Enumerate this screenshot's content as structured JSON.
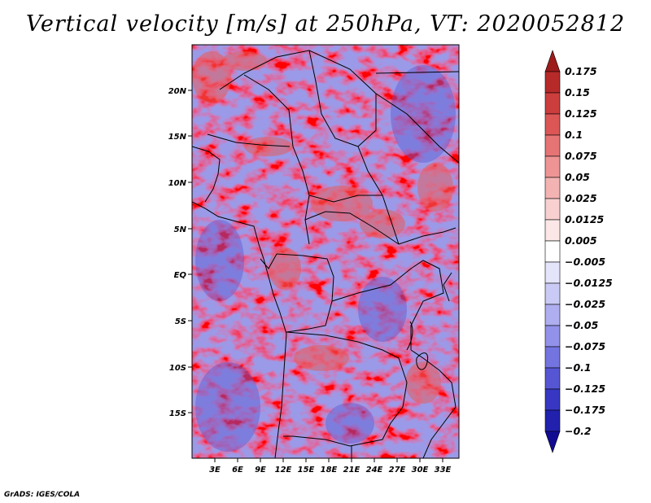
{
  "title": "Vertical velocity [m/s] at 250hPa, VT: 2020052812",
  "credit": "GrADS: IGES/COLA",
  "map": {
    "variable": "Vertical velocity",
    "units": "m/s",
    "level": "250hPa",
    "valid_time": "2020052812",
    "lat_labels": [
      "20N",
      "15N",
      "10N",
      "5N",
      "EQ",
      "5S",
      "10S",
      "15S"
    ],
    "lon_labels": [
      "3E",
      "6E",
      "9E",
      "12E",
      "15E",
      "18E",
      "21E",
      "24E",
      "27E",
      "30E",
      "33E"
    ],
    "colorbar": {
      "labels": [
        "0.175",
        "0.15",
        "0.125",
        "0.1",
        "0.075",
        "0.05",
        "0.025",
        "0.0125",
        "0.005",
        "−0.005",
        "−0.0125",
        "−0.025",
        "−0.05",
        "−0.075",
        "−0.1",
        "−0.125",
        "−0.175",
        "−0.2"
      ],
      "colors": [
        "#9e1b1b",
        "#b72a2a",
        "#cc3d3d",
        "#dc5656",
        "#e67474",
        "#ee9494",
        "#f4b3b3",
        "#f9d0d0",
        "#fce7e7",
        "#ffffff",
        "#e4e4fb",
        "#cacaf6",
        "#aeaef0",
        "#9292ea",
        "#7474e0",
        "#5656d4",
        "#3737c4",
        "#2121ae",
        "#120c94"
      ]
    }
  }
}
